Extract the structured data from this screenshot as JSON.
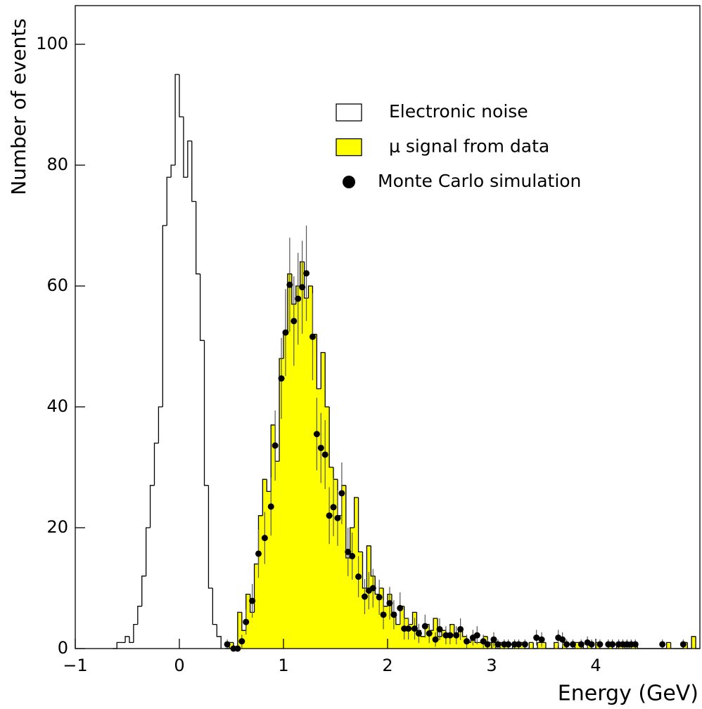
{
  "chart_data": {
    "type": "histogram",
    "x_label": "Energy (GeV)",
    "y_label": "Number of events",
    "xlim": [
      -1,
      5
    ],
    "ylim": [
      0,
      106.4
    ],
    "xticks": [
      {
        "value": -1,
        "label": "−1"
      },
      0,
      1,
      2,
      3,
      4
    ],
    "yticks": [
      0,
      20,
      40,
      60,
      80,
      100
    ],
    "series": [
      {
        "name": "Electronic noise",
        "type": "histogram",
        "color": "none",
        "bins": [
          -0.64,
          -0.6,
          -0.56,
          -0.52,
          -0.48,
          -0.44,
          -0.4,
          -0.36,
          -0.32,
          -0.28,
          -0.24,
          -0.2,
          -0.16,
          -0.12,
          -0.08,
          -0.04,
          0,
          0.04,
          0.08,
          0.12,
          0.16,
          0.2,
          0.24,
          0.28,
          0.32,
          0.36,
          0.4
        ],
        "values": [
          0,
          1,
          1,
          2,
          1,
          4,
          7,
          12,
          20,
          27,
          34,
          40,
          70,
          78,
          80,
          95,
          88,
          78,
          84,
          74,
          62,
          51,
          27,
          10,
          4,
          2
        ]
      },
      {
        "name": "μ signal from data",
        "type": "histogram",
        "color": "#ffff00",
        "bins": [
          0.44,
          0.48,
          0.52,
          0.56,
          0.6,
          0.64,
          0.68,
          0.72,
          0.76,
          0.8,
          0.84,
          0.88,
          0.92,
          0.96,
          1,
          1.04,
          1.08,
          1.12,
          1.16,
          1.2,
          1.24,
          1.28,
          1.32,
          1.36,
          1.4,
          1.44,
          1.48,
          1.52,
          1.56,
          1.6,
          1.64,
          1.68,
          1.72,
          1.76,
          1.8,
          1.84,
          1.88,
          1.92,
          1.96,
          2,
          2.04,
          2.08,
          2.12,
          2.16,
          2.2,
          2.24,
          2.28,
          2.32,
          2.36,
          2.4,
          2.44,
          2.48,
          2.52,
          2.56,
          2.6,
          2.64,
          2.68,
          2.72,
          2.76,
          2.8,
          2.84,
          2.88,
          2.92,
          2.96,
          3,
          3.04,
          3.08,
          3.12,
          3.16,
          3.2,
          3.24,
          3.28,
          3.32,
          3.36,
          3.4,
          3.44,
          3.48,
          3.52,
          3.56,
          3.6,
          3.64,
          3.68,
          3.72,
          3.76,
          3.8,
          3.84,
          3.88,
          3.92,
          3.96,
          4,
          4.04,
          4.08,
          4.12,
          4.16,
          4.2,
          4.24,
          4.28,
          4.32,
          4.36,
          4.4,
          4.44,
          4.48,
          4.52,
          4.56,
          4.6,
          4.64,
          4.68,
          4.72,
          4.76,
          4.8,
          4.84,
          4.88,
          4.92,
          4.96,
          5
        ],
        "values": [
          0,
          1,
          0,
          6,
          3,
          9,
          6,
          14,
          22,
          28,
          26,
          37,
          31,
          48,
          52,
          62,
          57,
          60,
          64,
          58,
          60,
          52,
          43,
          49,
          40,
          30,
          28,
          22,
          27,
          15,
          20,
          25,
          16,
          10,
          17,
          12,
          9,
          10,
          7,
          9,
          6,
          4,
          7,
          5,
          4,
          6,
          3,
          2,
          4,
          3,
          5,
          2,
          3,
          2,
          4,
          2,
          3,
          2,
          1,
          2,
          1,
          1,
          2,
          1,
          1,
          0,
          1,
          1,
          0,
          1,
          1,
          1,
          0,
          1,
          0,
          1,
          1,
          0,
          0,
          1,
          0,
          1,
          0,
          0,
          1,
          1,
          0,
          1,
          0,
          1,
          0,
          0,
          1,
          0,
          1,
          1,
          0,
          1,
          1,
          0,
          0,
          0,
          0,
          0,
          0,
          0,
          1,
          0,
          0,
          0,
          1,
          0,
          2,
          0
        ]
      },
      {
        "name": "Monte Carlo simulation",
        "type": "scatter",
        "color": "#000000",
        "x": [
          0.46,
          0.52,
          0.56,
          0.6,
          0.64,
          0.7,
          0.76,
          0.82,
          0.88,
          0.92,
          0.98,
          1.02,
          1.06,
          1.1,
          1.14,
          1.18,
          1.22,
          1.28,
          1.32,
          1.36,
          1.4,
          1.44,
          1.48,
          1.52,
          1.56,
          1.62,
          1.66,
          1.72,
          1.78,
          1.82,
          1.86,
          1.92,
          1.96,
          2.02,
          2.06,
          2.12,
          2.16,
          2.2,
          2.26,
          2.3,
          2.36,
          2.4,
          2.46,
          2.5,
          2.56,
          2.6,
          2.66,
          2.7,
          2.76,
          2.82,
          2.86,
          2.92,
          2.96,
          3.02,
          3.06,
          3.12,
          3.16,
          3.22,
          3.26,
          3.32,
          3.43,
          3.48,
          3.64,
          3.68,
          3.72,
          3.78,
          3.86,
          3.92,
          3.96,
          4.04,
          4.12,
          4.16,
          4.22,
          4.26,
          4.3,
          4.34,
          4.38,
          4.64,
          4.84
        ],
        "values": [
          0.7,
          0,
          0,
          1.2,
          4.4,
          7.9,
          15.7,
          18.3,
          23.5,
          33.6,
          44.7,
          52.3,
          60.2,
          54.2,
          57.9,
          59.8,
          62.1,
          51.6,
          35.5,
          33.2,
          32.1,
          22,
          23.4,
          21.6,
          25.7,
          16,
          15.3,
          11.9,
          8.6,
          9.6,
          10,
          8.5,
          5.6,
          7.5,
          5.6,
          6.7,
          3.3,
          3.3,
          3.3,
          2.5,
          3.7,
          2.5,
          1.5,
          3.2,
          2.2,
          2.2,
          2.2,
          3.2,
          1.2,
          1.8,
          2.2,
          1.2,
          0.7,
          1.5,
          0.7,
          0.7,
          0.7,
          0.7,
          0.7,
          0.7,
          1.8,
          1.5,
          1.8,
          1.5,
          0.7,
          0.7,
          0.7,
          1,
          0.7,
          0.7,
          0.7,
          0.7,
          0.7,
          0.7,
          0.7,
          0.7,
          0.7,
          0.7,
          0.7
        ],
        "errors": [
          0.8,
          0,
          0,
          1.1,
          2.1,
          2.8,
          4,
          4.3,
          4.8,
          5.8,
          6.7,
          7.2,
          7.8,
          7.4,
          7.6,
          7.7,
          7.9,
          7.2,
          6,
          5.8,
          5.7,
          4.7,
          4.8,
          4.6,
          5.1,
          4,
          3.9,
          3.4,
          2.9,
          3.1,
          3.2,
          2.9,
          2.4,
          2.7,
          2.4,
          2.6,
          1.8,
          1.8,
          1.8,
          1.6,
          1.9,
          1.6,
          1.2,
          1.8,
          1.5,
          1.5,
          1.5,
          1.8,
          1.1,
          1.3,
          1.5,
          1.1,
          0.8,
          1.2,
          0.8,
          0.8,
          0.8,
          0.8,
          0.8,
          0.8,
          1.3,
          1.2,
          1.3,
          1.2,
          0.8,
          0.8,
          0.8,
          1,
          0.8,
          0.8,
          0.8,
          0.8,
          0.8,
          0.8,
          0.8,
          0.8,
          0.8,
          0.8,
          0.8
        ]
      }
    ]
  }
}
